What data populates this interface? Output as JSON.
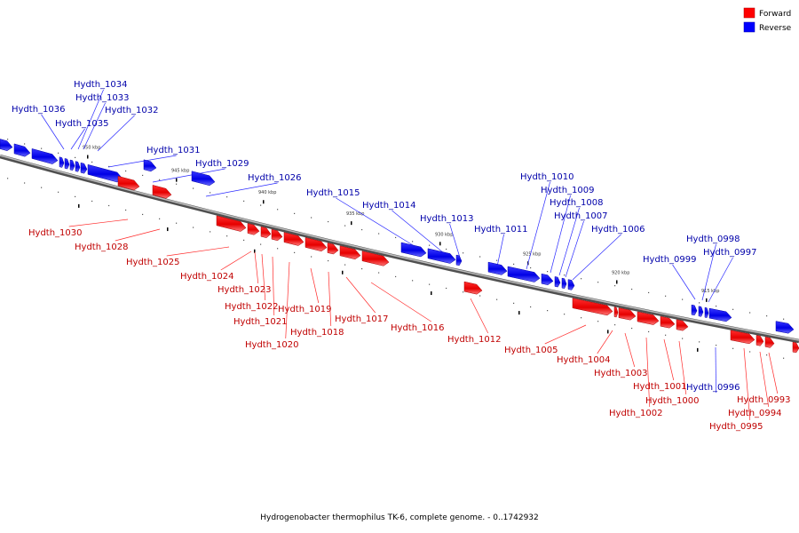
{
  "colors": {
    "forward": "#ff0000",
    "reverse": "#0000ff",
    "forward_label": "#c00000",
    "reverse_label": "#0000aa",
    "backbone": "#808080"
  },
  "legend": {
    "forward_label": "Forward",
    "reverse_label": "Reverse"
  },
  "caption": "Hydrogenobacter thermophilus TK-6, complete genome. - 0..1742932",
  "ticks": [
    "950 kbp",
    "945 kbp",
    "940 kbp",
    "935 kbp",
    "930 kbp",
    "925 kbp",
    "920 kbp",
    "915 kbp"
  ],
  "reverse_genes": [
    "Hydth_1036",
    "Hydth_1035",
    "Hydth_1034",
    "Hydth_1033",
    "Hydth_1032",
    "Hydth_1031",
    "Hydth_1029",
    "Hydth_1026",
    "Hydth_1015",
    "Hydth_1014",
    "Hydth_1013",
    "Hydth_1011",
    "Hydth_1010",
    "Hydth_1009",
    "Hydth_1008",
    "Hydth_1007",
    "Hydth_1006",
    "Hydth_0999",
    "Hydth_0998",
    "Hydth_0997",
    "Hydth_0996"
  ],
  "forward_genes": [
    "Hydth_1030",
    "Hydth_1028",
    "Hydth_1025",
    "Hydth_1024",
    "Hydth_1023",
    "Hydth_1022",
    "Hydth_1021",
    "Hydth_1020",
    "Hydth_1019",
    "Hydth_1018",
    "Hydth_1017",
    "Hydth_1016",
    "Hydth_1012",
    "Hydth_1005",
    "Hydth_1004",
    "Hydth_1003",
    "Hydth_1002",
    "Hydth_1001",
    "Hydth_1000",
    "Hydth_0995",
    "Hydth_0994",
    "Hydth_0993"
  ]
}
